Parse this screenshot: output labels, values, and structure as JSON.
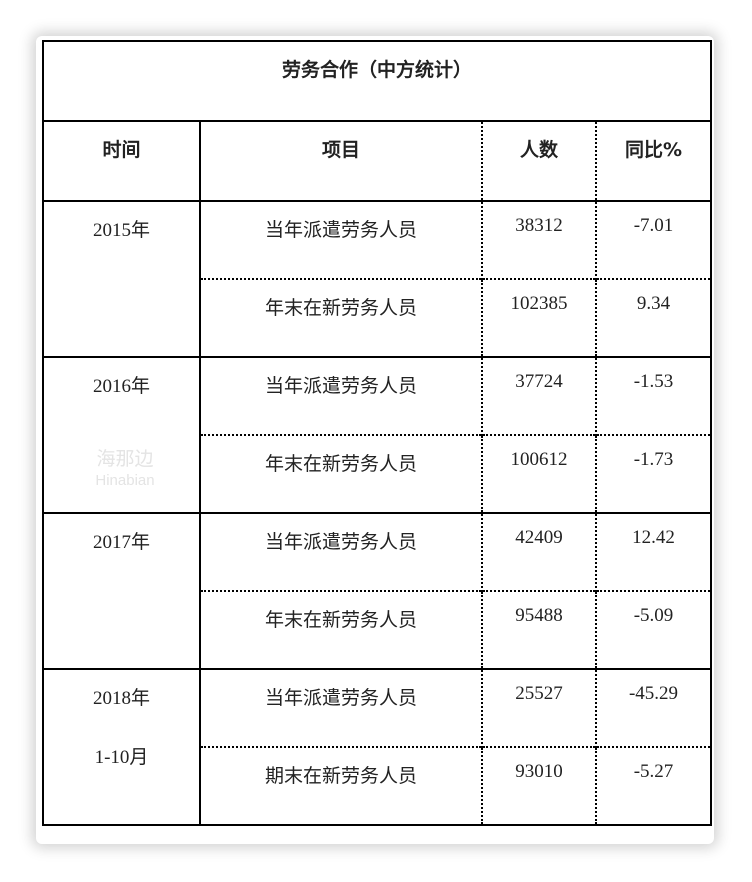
{
  "table": {
    "title": "劳务合作（中方统计）",
    "headers": [
      "时间",
      "项目",
      "人数",
      "同比%"
    ],
    "groups": [
      {
        "period": "2015年",
        "period_sub": "",
        "rows": [
          {
            "item": "当年派遣劳务人员",
            "count": "38312",
            "yoy": "-7.01"
          },
          {
            "item": "年末在新劳务人员",
            "count": "102385",
            "yoy": "9.34"
          }
        ]
      },
      {
        "period": "2016年",
        "period_sub": "",
        "rows": [
          {
            "item": "当年派遣劳务人员",
            "count": "37724",
            "yoy": "-1.53"
          },
          {
            "item": "年末在新劳务人员",
            "count": "100612",
            "yoy": "-1.73"
          }
        ]
      },
      {
        "period": "2017年",
        "period_sub": "",
        "rows": [
          {
            "item": "当年派遣劳务人员",
            "count": "42409",
            "yoy": "12.42"
          },
          {
            "item": "年末在新劳务人员",
            "count": "95488",
            "yoy": "-5.09"
          }
        ]
      },
      {
        "period": "2018年",
        "period_sub": "1-10月",
        "rows": [
          {
            "item": "当年派遣劳务人员",
            "count": "25527",
            "yoy": "-45.29"
          },
          {
            "item": "期末在新劳务人员",
            "count": "93010",
            "yoy": "-5.27"
          }
        ]
      }
    ]
  },
  "watermark": {
    "cn": "海那边",
    "en": "Hinabian"
  }
}
